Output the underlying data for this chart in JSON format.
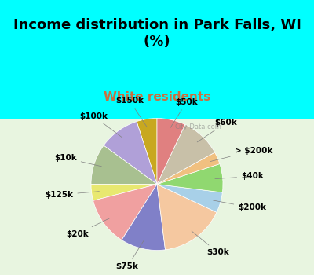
{
  "title": "Income distribution in Park Falls, WI\n(%)",
  "subtitle": "White residents",
  "labels": [
    "$150k",
    "$100k",
    "$10k",
    "$125k",
    "$20k",
    "$75k",
    "$30k",
    "$200k",
    "$40k",
    "> $200k",
    "$60k",
    "$50k"
  ],
  "values": [
    5,
    10,
    10,
    4,
    12,
    11,
    16,
    5,
    7,
    3,
    10,
    7
  ],
  "colors": [
    "#c8a820",
    "#b0a0d8",
    "#a8c090",
    "#e8e870",
    "#f0a0a0",
    "#8080c8",
    "#f5c8a0",
    "#a8d0e8",
    "#90d870",
    "#f0c080",
    "#c8c0a8",
    "#e08080"
  ],
  "background_top": "#00ffff",
  "background_chart": "#e8f5e0",
  "title_color": "#000000",
  "subtitle_color": "#c87040",
  "startangle": 90,
  "watermark": "City-Data.com"
}
